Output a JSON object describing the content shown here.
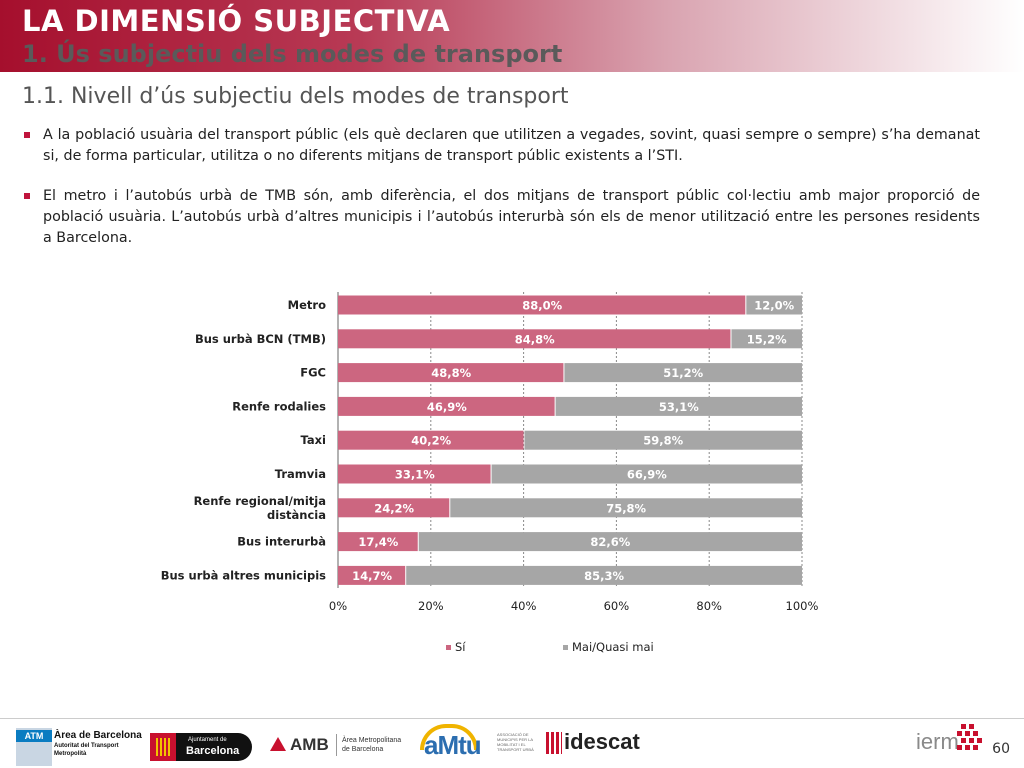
{
  "header": {
    "title": "LA DIMENSIÓ SUBJECTIVA",
    "subtitle": "1. Ús subjectiu dels modes de transport"
  },
  "section_title": "1.1. Nivell d’ús subjectiu dels modes de transport",
  "bullets": [
    "A la població usuària del transport públic (els què declaren que utilitzen a vegades, sovint, quasi sempre o sempre) s’ha demanat si, de forma particular, utilitza o no diferents mitjans de transport públic existents a l’STI.",
    "El metro i l’autobús urbà de TMB són, amb diferència, el dos mitjans de transport públic col·lectiu amb major proporció de població usuària. L’autobús urbà d’altres municipis i l’autobús interurbà són els de menor utilització entre les persones residents a Barcelona."
  ],
  "chart_data": {
    "type": "bar",
    "orientation": "horizontal",
    "stacked": true,
    "categories": [
      "Metro",
      "Bus urbà BCN (TMB)",
      "FGC",
      "Renfe rodalies",
      "Taxi",
      "Tramvia",
      "Renfe regional/mitja distància",
      "Bus interurbà",
      "Bus urbà altres municipis"
    ],
    "series": [
      {
        "name": "Sí",
        "color": "#cc6680",
        "values": [
          88.0,
          84.8,
          48.8,
          46.9,
          40.2,
          33.1,
          24.2,
          17.4,
          14.7
        ],
        "labels": [
          "88,0%",
          "84,8%",
          "48,8%",
          "46,9%",
          "40,2%",
          "33,1%",
          "24,2%",
          "17,4%",
          "14,7%"
        ]
      },
      {
        "name": "Mai/Quasi mai",
        "color": "#a6a6a6",
        "values": [
          12.0,
          15.2,
          51.2,
          53.1,
          59.8,
          66.9,
          75.8,
          82.6,
          85.3
        ],
        "labels": [
          "12,0%",
          "15,2%",
          "51,2%",
          "53,1%",
          "59,8%",
          "66,9%",
          "75,8%",
          "82,6%",
          "85,3%"
        ]
      }
    ],
    "xlim": [
      0,
      100
    ],
    "xticks": [
      "0%",
      "20%",
      "40%",
      "60%",
      "80%",
      "100%"
    ],
    "grid": true,
    "legend_position": "bottom"
  },
  "footer": {
    "atm": "ATM",
    "atm_name": "Àrea de Barcelona",
    "atm_sub1": "Autoritat del Transport",
    "atm_sub2": "Metropolità",
    "ajuntament_top": "Ajuntament de",
    "ajuntament_name": "Barcelona",
    "amb": "AMB",
    "amb_name1": "Àrea Metropolitana",
    "amb_name2": "de Barcelona",
    "amtu": "aMtu",
    "amtu_sub": "ASSOCIACIÓ DE MUNICIPIS PER LA MOBILITAT I EL TRANSPORT URBÀ",
    "idescat": "idescat",
    "iermb": "ierm",
    "page": "60"
  }
}
